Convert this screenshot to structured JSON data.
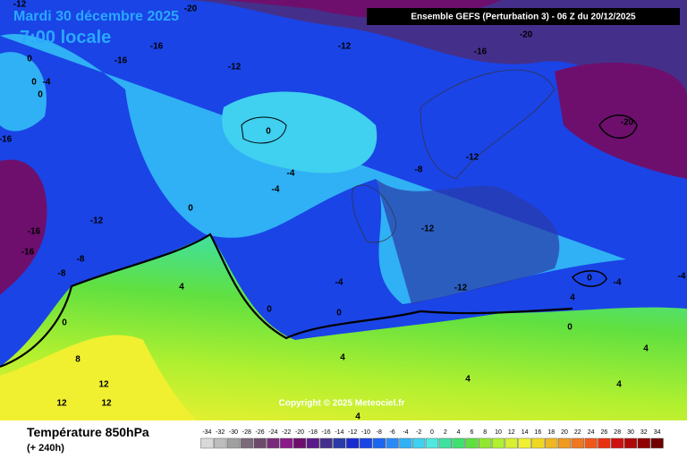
{
  "header": {
    "date": "Mardi 30 décembre 2025",
    "time": "7:00 locale",
    "model": "Ensemble GEFS  (Perturbation 3)  -  06 Z du 20/12/2025",
    "copyright": "Copyright © 2025 Meteociel.fr"
  },
  "footer": {
    "variable": "Température 850hPa",
    "lead": "(+ 240h)"
  },
  "scale": {
    "values": [
      -34,
      -32,
      -30,
      -28,
      -26,
      -24,
      -22,
      -20,
      -18,
      -16,
      -14,
      -12,
      -10,
      -8,
      -6,
      -4,
      -2,
      0,
      2,
      4,
      6,
      8,
      10,
      12,
      14,
      16,
      18,
      20,
      22,
      24,
      26,
      28,
      30,
      32,
      34
    ],
    "colors": [
      "#d9d9d9",
      "#bdbdbd",
      "#a0a0a0",
      "#7a6a7a",
      "#6b4a6b",
      "#7a2a7a",
      "#8a1a8a",
      "#6e0f6e",
      "#5a1a8a",
      "#44308a",
      "#2a3aa8",
      "#1a2ad0",
      "#1a44e6",
      "#1a66f0",
      "#2a8af5",
      "#30b0f5",
      "#40d0f0",
      "#50e8e0",
      "#40e0a0",
      "#40e070",
      "#60e040",
      "#90e830",
      "#b0f030",
      "#d8f030",
      "#f0f030",
      "#f0d820",
      "#f0b820",
      "#f09a20",
      "#f07820",
      "#f05818",
      "#e83010",
      "#d01010",
      "#b00808",
      "#900000",
      "#700000"
    ]
  },
  "contour_labels": [
    "-12",
    "-20",
    "-16",
    "-20",
    "-12",
    "-16",
    "-16",
    "-12",
    "0",
    "0",
    "-4",
    "0",
    "-16",
    "0",
    "-20",
    "-4",
    "-8",
    "-12",
    "-4",
    "0",
    "-12",
    "-16",
    "-16",
    "-12",
    "-8",
    "-8",
    "4",
    "-4",
    "-12",
    "0",
    "-4",
    "-4",
    "4",
    "0",
    "0",
    "0",
    "0",
    "8",
    "4",
    "4",
    "12",
    "12",
    "12",
    "4",
    "4",
    "4"
  ]
}
